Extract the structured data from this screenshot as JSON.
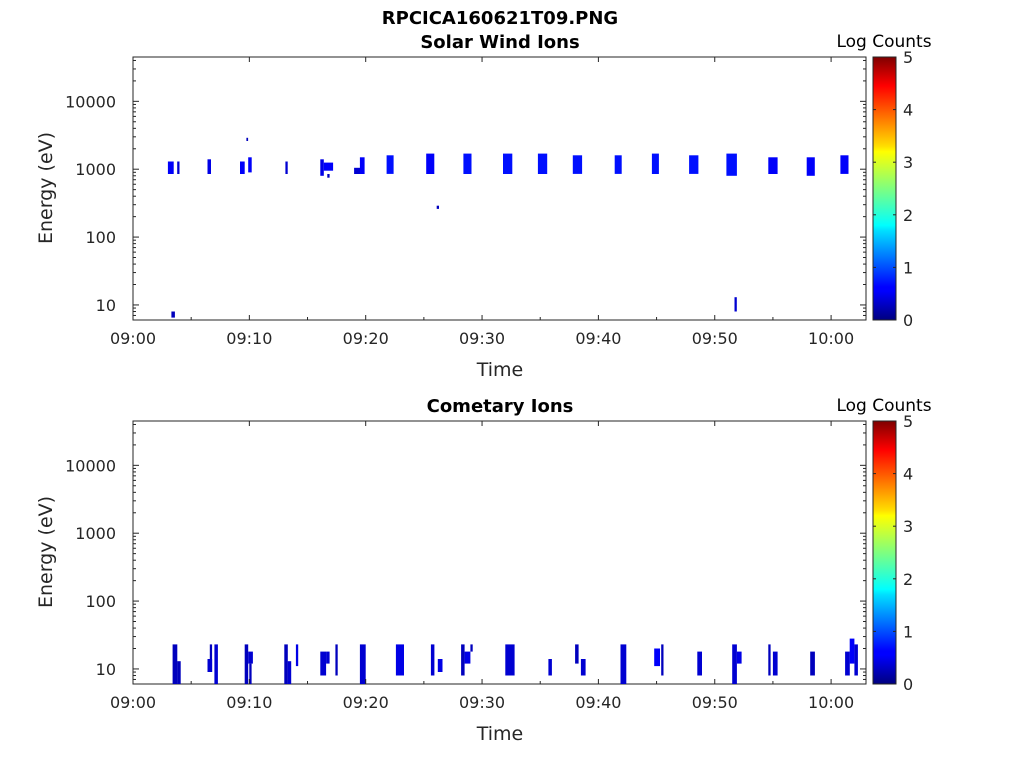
{
  "figure": {
    "title": "RPCICA160621T09.PNG"
  },
  "chart_data": [
    {
      "type": "heatmap",
      "title": "Solar Wind Ions",
      "xlabel": "Time",
      "ylabel": "Energy (eV)",
      "x_ticks": [
        "09:00",
        "09:10",
        "09:20",
        "09:30",
        "09:40",
        "09:50",
        "10:00"
      ],
      "y_ticks": [
        "10",
        "100",
        "1000",
        "10000"
      ],
      "y_scale": "log",
      "ylim": [
        6,
        45000
      ],
      "xlim_minutes": [
        0,
        63
      ],
      "colorbar": {
        "label": "Log Counts",
        "ticks": [
          "0",
          "1",
          "2",
          "3",
          "4",
          "5"
        ],
        "range": [
          0,
          5
        ]
      },
      "cells": [
        {
          "t0": 3.0,
          "t1": 3.5,
          "e0": 850,
          "e1": 1300,
          "v": 0.6
        },
        {
          "t0": 3.8,
          "t1": 4.0,
          "e0": 850,
          "e1": 1300,
          "v": 0.4
        },
        {
          "t0": 3.3,
          "t1": 3.6,
          "e0": 6.5,
          "e1": 8,
          "v": 0.3
        },
        {
          "t0": 6.4,
          "t1": 6.7,
          "e0": 850,
          "e1": 1400,
          "v": 0.5
        },
        {
          "t0": 9.2,
          "t1": 9.6,
          "e0": 850,
          "e1": 1300,
          "v": 0.6
        },
        {
          "t0": 9.9,
          "t1": 10.2,
          "e0": 900,
          "e1": 1500,
          "v": 0.6
        },
        {
          "t0": 9.75,
          "t1": 9.9,
          "e0": 2600,
          "e1": 2900,
          "v": 0.3
        },
        {
          "t0": 13.1,
          "t1": 13.3,
          "e0": 850,
          "e1": 1300,
          "v": 0.4
        },
        {
          "t0": 16.1,
          "t1": 16.4,
          "e0": 800,
          "e1": 1400,
          "v": 0.5
        },
        {
          "t0": 16.4,
          "t1": 17.2,
          "e0": 950,
          "e1": 1250,
          "v": 0.6
        },
        {
          "t0": 16.7,
          "t1": 16.9,
          "e0": 750,
          "e1": 850,
          "v": 0.3
        },
        {
          "t0": 19.0,
          "t1": 19.6,
          "e0": 850,
          "e1": 1050,
          "v": 0.4
        },
        {
          "t0": 19.5,
          "t1": 19.9,
          "e0": 850,
          "e1": 1500,
          "v": 0.6
        },
        {
          "t0": 21.8,
          "t1": 22.4,
          "e0": 850,
          "e1": 1600,
          "v": 0.7
        },
        {
          "t0": 25.2,
          "t1": 25.9,
          "e0": 850,
          "e1": 1700,
          "v": 0.6
        },
        {
          "t0": 26.1,
          "t1": 26.3,
          "e0": 260,
          "e1": 290,
          "v": 0.3
        },
        {
          "t0": 28.4,
          "t1": 29.1,
          "e0": 850,
          "e1": 1700,
          "v": 0.7
        },
        {
          "t0": 31.8,
          "t1": 32.6,
          "e0": 850,
          "e1": 1700,
          "v": 0.7
        },
        {
          "t0": 34.8,
          "t1": 35.6,
          "e0": 850,
          "e1": 1700,
          "v": 0.7
        },
        {
          "t0": 37.8,
          "t1": 38.6,
          "e0": 850,
          "e1": 1600,
          "v": 0.7
        },
        {
          "t0": 41.4,
          "t1": 42.0,
          "e0": 850,
          "e1": 1600,
          "v": 0.7
        },
        {
          "t0": 44.6,
          "t1": 45.2,
          "e0": 850,
          "e1": 1700,
          "v": 0.7
        },
        {
          "t0": 47.8,
          "t1": 48.6,
          "e0": 850,
          "e1": 1600,
          "v": 0.7
        },
        {
          "t0": 51.0,
          "t1": 51.9,
          "e0": 800,
          "e1": 1700,
          "v": 0.7
        },
        {
          "t0": 51.7,
          "t1": 51.9,
          "e0": 8,
          "e1": 13,
          "v": 0.4
        },
        {
          "t0": 54.6,
          "t1": 55.4,
          "e0": 850,
          "e1": 1500,
          "v": 0.6
        },
        {
          "t0": 57.9,
          "t1": 58.6,
          "e0": 800,
          "e1": 1500,
          "v": 0.6
        },
        {
          "t0": 60.8,
          "t1": 61.5,
          "e0": 850,
          "e1": 1600,
          "v": 0.6
        }
      ]
    },
    {
      "type": "heatmap",
      "title": "Cometary Ions",
      "xlabel": "Time",
      "ylabel": "Energy (eV)",
      "x_ticks": [
        "09:00",
        "09:10",
        "09:20",
        "09:30",
        "09:40",
        "09:50",
        "10:00"
      ],
      "y_ticks": [
        "10",
        "100",
        "1000",
        "10000"
      ],
      "y_scale": "log",
      "ylim": [
        6,
        45000
      ],
      "xlim_minutes": [
        0,
        63
      ],
      "colorbar": {
        "label": "Log Counts",
        "ticks": [
          "0",
          "1",
          "2",
          "3",
          "4",
          "5"
        ],
        "range": [
          0,
          5
        ]
      },
      "cells": [
        {
          "t0": 3.4,
          "t1": 3.8,
          "e0": 6,
          "e1": 23,
          "v": 0.3
        },
        {
          "t0": 3.8,
          "t1": 4.1,
          "e0": 6,
          "e1": 13,
          "v": 0.3
        },
        {
          "t0": 6.4,
          "t1": 6.8,
          "e0": 9,
          "e1": 14,
          "v": 0.4
        },
        {
          "t0": 6.6,
          "t1": 6.8,
          "e0": 14,
          "e1": 23,
          "v": 0.3
        },
        {
          "t0": 7.0,
          "t1": 7.3,
          "e0": 6,
          "e1": 23,
          "v": 0.4
        },
        {
          "t0": 9.6,
          "t1": 9.9,
          "e0": 6,
          "e1": 23,
          "v": 0.3
        },
        {
          "t0": 9.9,
          "t1": 10.3,
          "e0": 12,
          "e1": 18,
          "v": 0.4
        },
        {
          "t0": 10.0,
          "t1": 10.2,
          "e0": 6,
          "e1": 12,
          "v": 0.3
        },
        {
          "t0": 13.0,
          "t1": 13.3,
          "e0": 6,
          "e1": 23,
          "v": 0.3
        },
        {
          "t0": 13.3,
          "t1": 13.6,
          "e0": 6,
          "e1": 13,
          "v": 0.4
        },
        {
          "t0": 14.0,
          "t1": 14.2,
          "e0": 11,
          "e1": 23,
          "v": 0.5
        },
        {
          "t0": 16.1,
          "t1": 16.6,
          "e0": 8,
          "e1": 18,
          "v": 0.4
        },
        {
          "t0": 16.6,
          "t1": 16.9,
          "e0": 12,
          "e1": 18,
          "v": 0.4
        },
        {
          "t0": 17.4,
          "t1": 17.6,
          "e0": 8,
          "e1": 23,
          "v": 0.3
        },
        {
          "t0": 19.5,
          "t1": 20.0,
          "e0": 6,
          "e1": 23,
          "v": 0.4
        },
        {
          "t0": 22.6,
          "t1": 23.3,
          "e0": 8,
          "e1": 23,
          "v": 0.5
        },
        {
          "t0": 25.6,
          "t1": 25.9,
          "e0": 8,
          "e1": 23,
          "v": 0.4
        },
        {
          "t0": 26.2,
          "t1": 26.6,
          "e0": 9,
          "e1": 14,
          "v": 0.5
        },
        {
          "t0": 28.2,
          "t1": 28.5,
          "e0": 8,
          "e1": 23,
          "v": 0.3
        },
        {
          "t0": 28.5,
          "t1": 29.0,
          "e0": 12,
          "e1": 18,
          "v": 0.5
        },
        {
          "t0": 29.0,
          "t1": 29.2,
          "e0": 18,
          "e1": 23,
          "v": 0.3
        },
        {
          "t0": 32.0,
          "t1": 32.8,
          "e0": 8,
          "e1": 23,
          "v": 0.4
        },
        {
          "t0": 35.7,
          "t1": 36.0,
          "e0": 8,
          "e1": 14,
          "v": 0.4
        },
        {
          "t0": 38.0,
          "t1": 38.3,
          "e0": 12,
          "e1": 23,
          "v": 0.3
        },
        {
          "t0": 38.5,
          "t1": 38.9,
          "e0": 8,
          "e1": 14,
          "v": 0.4
        },
        {
          "t0": 41.9,
          "t1": 42.4,
          "e0": 6,
          "e1": 23,
          "v": 0.4
        },
        {
          "t0": 44.8,
          "t1": 45.3,
          "e0": 11,
          "e1": 20,
          "v": 0.6
        },
        {
          "t0": 45.4,
          "t1": 45.6,
          "e0": 8,
          "e1": 23,
          "v": 0.3
        },
        {
          "t0": 48.5,
          "t1": 48.9,
          "e0": 8,
          "e1": 18,
          "v": 0.4
        },
        {
          "t0": 51.5,
          "t1": 51.9,
          "e0": 6,
          "e1": 23,
          "v": 0.4
        },
        {
          "t0": 51.9,
          "t1": 52.3,
          "e0": 12,
          "e1": 18,
          "v": 0.5
        },
        {
          "t0": 54.6,
          "t1": 54.8,
          "e0": 8,
          "e1": 23,
          "v": 0.3
        },
        {
          "t0": 55.0,
          "t1": 55.4,
          "e0": 8,
          "e1": 18,
          "v": 0.4
        },
        {
          "t0": 58.2,
          "t1": 58.6,
          "e0": 8,
          "e1": 18,
          "v": 0.3
        },
        {
          "t0": 61.2,
          "t1": 61.6,
          "e0": 8,
          "e1": 18,
          "v": 0.4
        },
        {
          "t0": 61.6,
          "t1": 62.0,
          "e0": 12,
          "e1": 28,
          "v": 0.6
        },
        {
          "t0": 62.0,
          "t1": 62.3,
          "e0": 8,
          "e1": 23,
          "v": 0.4
        }
      ]
    }
  ]
}
